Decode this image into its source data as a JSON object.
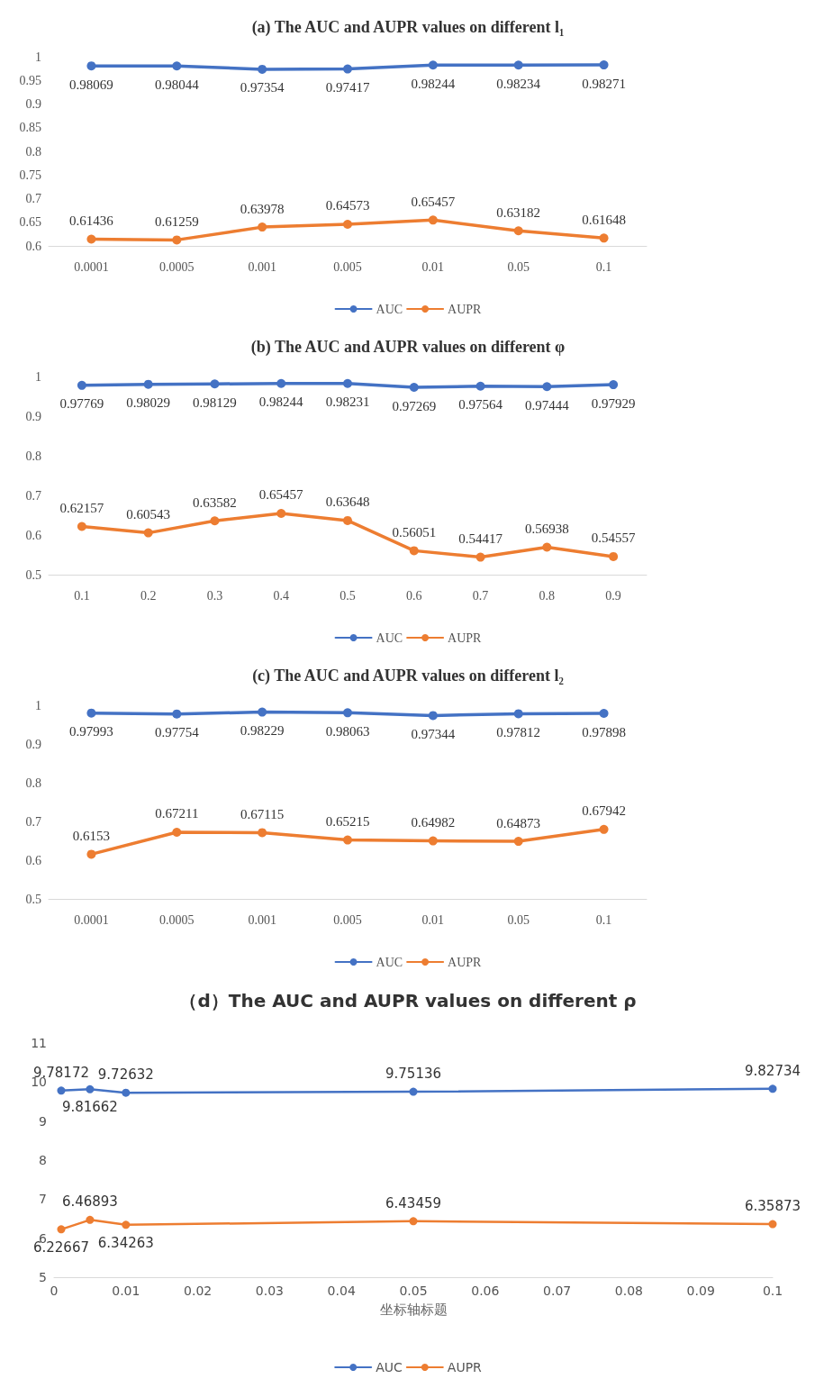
{
  "chart_data": [
    {
      "type": "line",
      "title": "(a) The AUC and AUPR values on different l₁",
      "categories": [
        "0.0001",
        "0.0005",
        "0.001",
        "0.005",
        "0.01",
        "0.05",
        "0.1"
      ],
      "series": [
        {
          "name": "AUC",
          "color": "#4472c4",
          "values": [
            0.98069,
            0.98044,
            0.97354,
            0.97417,
            0.98244,
            0.98234,
            0.98271
          ]
        },
        {
          "name": "AUPR",
          "color": "#ed7d31",
          "values": [
            0.61436,
            0.61259,
            0.63978,
            0.64573,
            0.65457,
            0.63182,
            0.61648
          ]
        }
      ],
      "ylim": [
        0.6,
        1
      ],
      "yticks": [
        0.6,
        0.65,
        0.7,
        0.75,
        0.8,
        0.85,
        0.9,
        0.95,
        1
      ],
      "data_labels": true,
      "legend": "bottom",
      "marker": "circle",
      "grid": false
    },
    {
      "type": "line",
      "title": "(b) The AUC and AUPR values on different φ",
      "categories": [
        "0.1",
        "0.2",
        "0.3",
        "0.4",
        "0.5",
        "0.6",
        "0.7",
        "0.8",
        "0.9"
      ],
      "series": [
        {
          "name": "AUC",
          "color": "#4472c4",
          "values": [
            0.97769,
            0.98029,
            0.98129,
            0.98244,
            0.98231,
            0.97269,
            0.97564,
            0.97444,
            0.97929
          ]
        },
        {
          "name": "AUPR",
          "color": "#ed7d31",
          "values": [
            0.62157,
            0.60543,
            0.63582,
            0.65457,
            0.63648,
            0.56051,
            0.54417,
            0.56938,
            0.54557
          ]
        }
      ],
      "ylim": [
        0.5,
        1
      ],
      "yticks": [
        0.5,
        0.6,
        0.7,
        0.8,
        0.9,
        1
      ],
      "data_labels": true,
      "legend": "bottom",
      "marker": "circle",
      "grid": false
    },
    {
      "type": "line",
      "title": "(c) The AUC and AUPR values on different l₂",
      "categories": [
        "0.0001",
        "0.0005",
        "0.001",
        "0.005",
        "0.01",
        "0.05",
        "0.1"
      ],
      "series": [
        {
          "name": "AUC",
          "color": "#4472c4",
          "values": [
            0.97993,
            0.97754,
            0.98229,
            0.98063,
            0.97344,
            0.97812,
            0.97898
          ]
        },
        {
          "name": "AUPR",
          "color": "#ed7d31",
          "values": [
            0.6153,
            0.67211,
            0.67115,
            0.65215,
            0.64982,
            0.64873,
            0.67942
          ]
        }
      ],
      "ylim": [
        0.5,
        1
      ],
      "yticks": [
        0.5,
        0.6,
        0.7,
        0.8,
        0.9,
        1
      ],
      "data_labels": true,
      "legend": "bottom",
      "marker": "circle",
      "grid": false
    },
    {
      "type": "line",
      "title": "（d）The AUC and AUPR values on different ρ",
      "xlabel": "坐标轴标题",
      "x": [
        0.001,
        0.005,
        0.01,
        0.05,
        0.1
      ],
      "series": [
        {
          "name": "AUC",
          "color": "#4472c4",
          "values": [
            9.78172,
            9.81662,
            9.72632,
            9.75136,
            9.82734
          ]
        },
        {
          "name": "AUPR",
          "color": "#ed7d31",
          "values": [
            6.22667,
            6.46893,
            6.34263,
            6.43459,
            6.35873
          ]
        }
      ],
      "xlim": [
        0,
        0.1
      ],
      "xticks": [
        0,
        0.01,
        0.02,
        0.03,
        0.04,
        0.05,
        0.06,
        0.07,
        0.08,
        0.09,
        0.1
      ],
      "ylim": [
        5,
        11
      ],
      "yticks": [
        5,
        6,
        7,
        8,
        9,
        10,
        11
      ],
      "data_labels": true,
      "legend": "bottom",
      "marker": "circle",
      "grid": false
    }
  ]
}
